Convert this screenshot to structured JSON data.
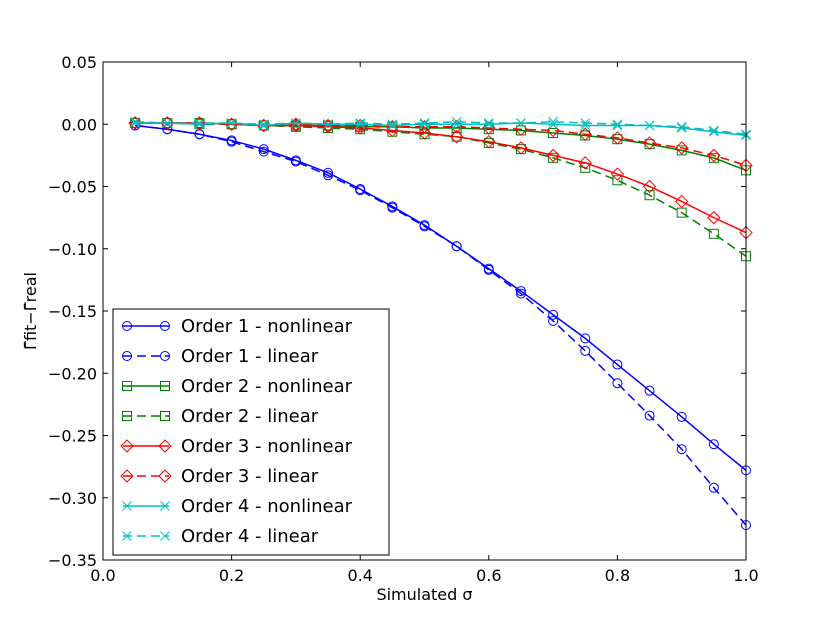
{
  "chart_data": {
    "type": "line",
    "xlabel": "Simulated σ",
    "ylabel": "Γ̄fit−Γ̄real",
    "xlim": [
      0.0,
      1.0
    ],
    "ylim": [
      -0.35,
      0.05
    ],
    "xticks": [
      "0.0",
      "0.2",
      "0.4",
      "0.6",
      "0.8",
      "1.0"
    ],
    "yticks": [
      "0.05",
      "0.00",
      "−0.05",
      "−0.10",
      "−0.15",
      "−0.20",
      "−0.25",
      "−0.30",
      "−0.35"
    ],
    "legend_position": "lower-left",
    "grid": false,
    "x": [
      0.05,
      0.1,
      0.15,
      0.2,
      0.25,
      0.3,
      0.35,
      0.4,
      0.45,
      0.5,
      0.55,
      0.6,
      0.65,
      0.7,
      0.75,
      0.8,
      0.85,
      0.9,
      0.95,
      1.0
    ],
    "series": [
      {
        "name": "Order 1 - nonlinear",
        "color": "#0000ff",
        "marker": "circle",
        "dash": "solid",
        "values": [
          -0.001,
          -0.004,
          -0.008,
          -0.013,
          -0.02,
          -0.029,
          -0.039,
          -0.052,
          -0.066,
          -0.081,
          -0.098,
          -0.116,
          -0.134,
          -0.153,
          -0.172,
          -0.193,
          -0.214,
          -0.235,
          -0.257,
          -0.278
        ]
      },
      {
        "name": "Order 1 - linear",
        "color": "#0000ff",
        "marker": "circle",
        "dash": "dashed",
        "values": [
          -0.001,
          -0.004,
          -0.008,
          -0.014,
          -0.022,
          -0.03,
          -0.041,
          -0.053,
          -0.067,
          -0.082,
          -0.098,
          -0.117,
          -0.136,
          -0.158,
          -0.182,
          -0.208,
          -0.234,
          -0.261,
          -0.292,
          -0.322
        ]
      },
      {
        "name": "Order 2 - nonlinear",
        "color": "#008000",
        "marker": "square",
        "dash": "solid",
        "values": [
          0.001,
          0.001,
          0.001,
          0.0,
          -0.001,
          -0.001,
          -0.001,
          -0.002,
          -0.002,
          -0.003,
          -0.003,
          -0.004,
          -0.005,
          -0.007,
          -0.009,
          -0.012,
          -0.016,
          -0.021,
          -0.027,
          -0.037
        ]
      },
      {
        "name": "Order 2 - linear",
        "color": "#008000",
        "marker": "square",
        "dash": "dashed",
        "values": [
          0.001,
          0.001,
          0.0,
          0.0,
          -0.001,
          -0.002,
          -0.003,
          -0.004,
          -0.006,
          -0.008,
          -0.01,
          -0.015,
          -0.02,
          -0.027,
          -0.035,
          -0.045,
          -0.057,
          -0.071,
          -0.088,
          -0.106
        ]
      },
      {
        "name": "Order 3 - nonlinear",
        "color": "#ff0000",
        "marker": "diamond",
        "dash": "solid",
        "values": [
          0.001,
          0.001,
          0.001,
          0.0,
          -0.001,
          -0.001,
          -0.002,
          -0.003,
          -0.005,
          -0.007,
          -0.01,
          -0.014,
          -0.019,
          -0.025,
          -0.031,
          -0.04,
          -0.05,
          -0.062,
          -0.075,
          -0.087
        ]
      },
      {
        "name": "Order 3 - linear",
        "color": "#ff0000",
        "marker": "diamond",
        "dash": "dashed",
        "values": [
          0.001,
          0.001,
          0.001,
          0.0,
          -0.001,
          0.0,
          -0.001,
          -0.001,
          -0.002,
          -0.002,
          -0.002,
          -0.003,
          -0.004,
          -0.005,
          -0.008,
          -0.011,
          -0.015,
          -0.019,
          -0.025,
          -0.033
        ]
      },
      {
        "name": "Order 4 - nonlinear",
        "color": "#00bfbf",
        "marker": "x",
        "dash": "solid",
        "values": [
          0.001,
          0.001,
          0.0,
          0.001,
          -0.001,
          0.001,
          0.0,
          0.0,
          -0.001,
          0.0,
          0.0,
          0.0,
          0.001,
          0.0,
          -0.001,
          -0.001,
          -0.001,
          -0.003,
          -0.006,
          -0.009
        ]
      },
      {
        "name": "Order 4 - linear",
        "color": "#00bfbf",
        "marker": "x",
        "dash": "dashed",
        "values": [
          0.002,
          0.001,
          0.001,
          0.001,
          0.0,
          0.001,
          0.0,
          0.001,
          0.0,
          0.001,
          0.002,
          0.001,
          0.001,
          0.002,
          0.001,
          0.0,
          -0.001,
          -0.002,
          -0.005,
          -0.008
        ]
      }
    ]
  }
}
